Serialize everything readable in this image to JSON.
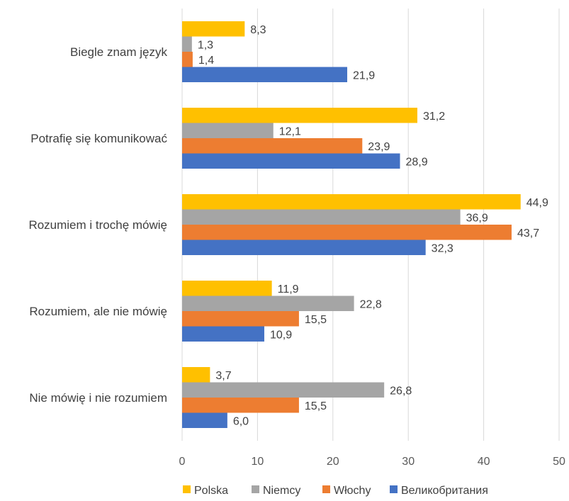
{
  "chart_data": {
    "type": "bar",
    "orientation": "horizontal",
    "categories": [
      "Biegle znam język",
      "Potrafię się komunikować",
      "Rozumiem i trochę mówię",
      "Rozumiem, ale nie mówię",
      "Nie mówię i nie rozumiem"
    ],
    "series": [
      {
        "name": "Polska",
        "color": "#FFC000",
        "values": [
          8.3,
          31.2,
          44.9,
          11.9,
          3.7
        ],
        "labels": [
          "8,3",
          "31,2",
          "44,9",
          "11,9",
          "3,7"
        ]
      },
      {
        "name": "Niemcy",
        "color": "#A5A5A5",
        "values": [
          1.3,
          12.1,
          36.9,
          22.8,
          26.8
        ],
        "labels": [
          "1,3",
          "12,1",
          "36,9",
          "22,8",
          "26,8"
        ]
      },
      {
        "name": "Włochy",
        "color": "#ED7D31",
        "values": [
          1.4,
          23.9,
          43.7,
          15.5,
          15.5
        ],
        "labels": [
          "1,4",
          "23,9",
          "43,7",
          "15,5",
          "15,5"
        ]
      },
      {
        "name": "Великобритания",
        "color": "#4472C4",
        "values": [
          21.9,
          28.9,
          32.3,
          10.9,
          6.0
        ],
        "labels": [
          "21,9",
          "28,9",
          "32,3",
          "10,9",
          "6,0"
        ]
      }
    ],
    "xlim": [
      0,
      50
    ],
    "xticks": [
      "0",
      "10",
      "20",
      "30",
      "40",
      "50"
    ],
    "grid": true,
    "legend_position": "bottom"
  }
}
